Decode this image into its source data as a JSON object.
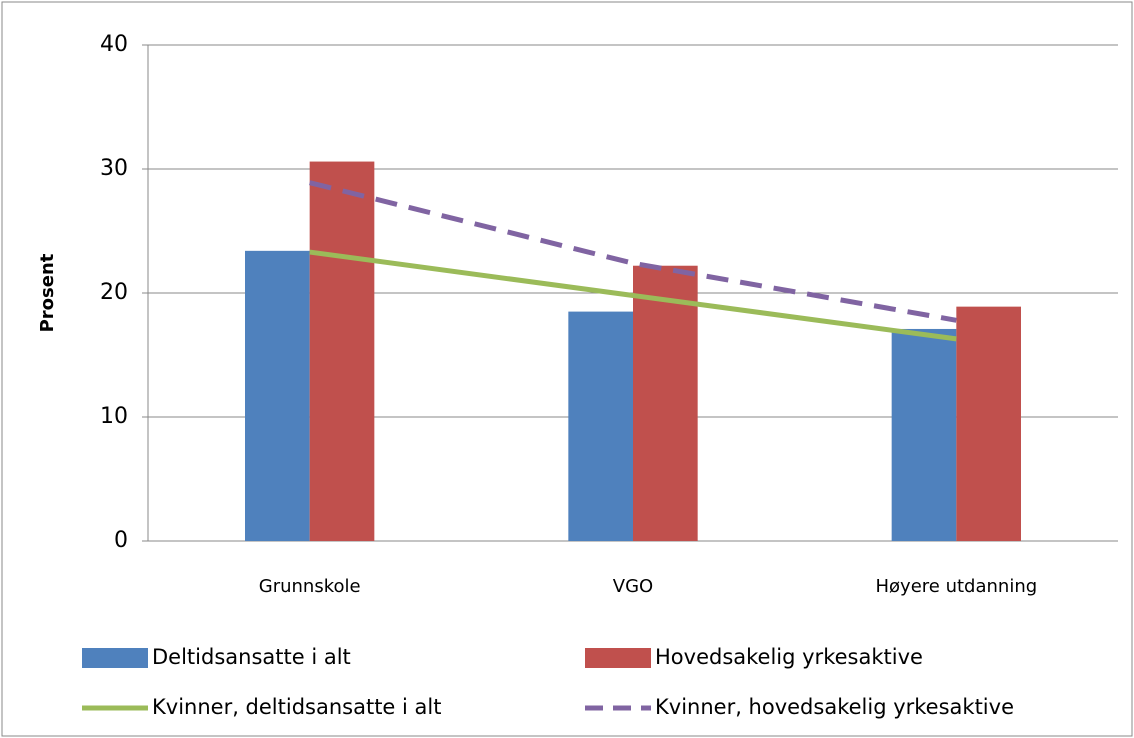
{
  "chart_data": {
    "type": "bar",
    "ylabel": "Prosent",
    "categories": [
      "Grunnskole",
      "VGO",
      "Høyere utdanning"
    ],
    "series": [
      {
        "name": "Deltidsansatte i alt",
        "type": "bar",
        "color": "#4f81bd",
        "values": [
          23.4,
          18.5,
          17.1
        ]
      },
      {
        "name": "Hovedsakelig yrkesaktive",
        "type": "bar",
        "color": "#c0504d",
        "values": [
          30.6,
          22.2,
          18.9
        ]
      },
      {
        "name": "Kvinner, deltidsansatte i alt",
        "type": "line",
        "color": "#9bbb59",
        "values": [
          23.3,
          19.8,
          16.3
        ]
      },
      {
        "name": "Kvinner, hovedsakelig yrkesaktive",
        "type": "line",
        "line_style": "dashed",
        "color": "#8064a2",
        "values": [
          28.9,
          22.4,
          17.8
        ]
      }
    ],
    "ylim": [
      0,
      40
    ],
    "yticks": [
      0,
      10,
      20,
      30,
      40
    ],
    "grid": true,
    "legend": "bottom"
  }
}
